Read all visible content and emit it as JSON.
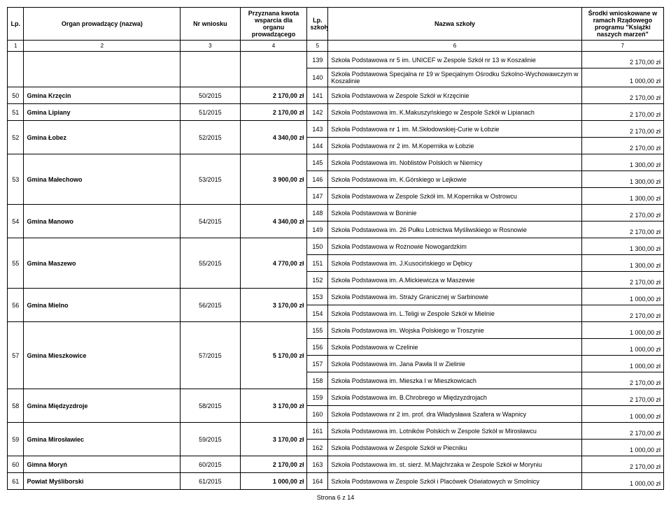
{
  "headers": {
    "lp": "Lp.",
    "organ": "Organ prowadzący (nazwa)",
    "nr": "Nr wniosku",
    "kwota": "Przyznana kwota wsparcia dla organu prowadzącego",
    "lps": "Lp. szkoły",
    "szkola": "Nazwa szkoły",
    "srodki": "Środki wnioskowane w ramach Rządowego programu \"Książki naszych marzeń\""
  },
  "numrow": [
    "1",
    "2",
    "3",
    "4",
    "5",
    "6",
    "7"
  ],
  "groups": [
    {
      "lp": "",
      "organ": "",
      "nr": "",
      "kwota": "",
      "rows": [
        {
          "lps": "139",
          "szkola": "Szkoła Podstawowa nr 5 im. UNICEF w Zespole Szkół nr 13 w Koszalinie",
          "srodki": "2 170,00 zł"
        },
        {
          "lps": "140",
          "szkola": "Szkoła Podstawowa Specjalna nr 19 w Specjalnym Ośrodku Szkolno-Wychowawczym w Koszalinie",
          "srodki": "1 000,00 zł"
        }
      ]
    },
    {
      "lp": "50",
      "organ": "Gmina Krzęcin",
      "nr": "50/2015",
      "kwota": "2 170,00 zł",
      "rows": [
        {
          "lps": "141",
          "szkola": "Szkoła Podstawowa w Zespole Szkół w Krzęcinie",
          "srodki": "2 170,00 zł"
        }
      ]
    },
    {
      "lp": "51",
      "organ": "Gmina Lipiany",
      "nr": "51/2015",
      "kwota": "2 170,00 zł",
      "rows": [
        {
          "lps": "142",
          "szkola": "Szkoła Podstawowa im. K.Makuszyńskiego w Zespole Szkół w Lipianach",
          "srodki": "2 170,00 zł"
        }
      ]
    },
    {
      "lp": "52",
      "organ": "Gmina Łobez",
      "nr": "52/2015",
      "kwota": "4 340,00 zł",
      "rows": [
        {
          "lps": "143",
          "szkola": "Szkoła Podstawowa nr 1 im. M.Skłodowskiej-Curie w Łobzie",
          "srodki": "2 170,00 zł"
        },
        {
          "lps": "144",
          "szkola": "Szkoła Podstawowa nr 2 im. M.Kopernika w Łobzie",
          "srodki": "2 170,00 zł"
        }
      ]
    },
    {
      "lp": "53",
      "organ": "Gmina Małechowo",
      "nr": "53/2015",
      "kwota": "3 900,00 zł",
      "rows": [
        {
          "lps": "145",
          "szkola": "Szkoła Podstawowa  im. Noblistów Polskich w Niemicy",
          "srodki": "1 300,00 zł"
        },
        {
          "lps": "146",
          "szkola": "Szkoła Podstawowa  im. K.Górskiego w Lejkowie",
          "srodki": "1 300,00 zł"
        },
        {
          "lps": "147",
          "szkola": "Szkoła Podstawowa w Zespole Szkół im. M.Kopernika w Ostrowcu",
          "srodki": "1 300,00 zł"
        }
      ]
    },
    {
      "lp": "54",
      "organ": "Gmina Manowo",
      "nr": "54/2015",
      "kwota": "4 340,00 zł",
      "rows": [
        {
          "lps": "148",
          "szkola": "Szkoła Podstawowa w Boninie",
          "srodki": "2 170,00 zł"
        },
        {
          "lps": "149",
          "szkola": "Szkoła Podstawowa im. 26 Pułku Lotnictwa Myśliwskiego w Rosnowie",
          "srodki": "2 170,00 zł"
        }
      ]
    },
    {
      "lp": "55",
      "organ": "Gmina Maszewo",
      "nr": "55/2015",
      "kwota": "4 770,00 zł",
      "rows": [
        {
          "lps": "150",
          "szkola": "Szkoła Podstawowa w Rożnowie Nowogardzkim",
          "srodki": "1 300,00 zł"
        },
        {
          "lps": "151",
          "szkola": "Szkoła Podstawowa im. J.Kusocińskiego w Dębicy",
          "srodki": "1 300,00 zł"
        },
        {
          "lps": "152",
          "szkola": "Szkoła Podstawowa im. A.Mickiewicza w Maszewie",
          "srodki": "2 170,00 zł"
        }
      ]
    },
    {
      "lp": "56",
      "organ": "Gmina Mielno",
      "nr": "56/2015",
      "kwota": "3 170,00 zł",
      "rows": [
        {
          "lps": "153",
          "szkola": "Szkoła Podstawowa im. Straży Granicznej w Sarbinowie",
          "srodki": "1 000,00 zł"
        },
        {
          "lps": "154",
          "szkola": "Szkoła Podstawowa im. L.Teligi w Zespole Szkół w Mielnie",
          "srodki": "2 170,00 zł"
        }
      ]
    },
    {
      "lp": "57",
      "organ": "Gmina Mieszkowice",
      "nr": "57/2015",
      "kwota": "5 170,00 zł",
      "rows": [
        {
          "lps": "155",
          "szkola": "Szkoła Podstawowa im. Wojska Polskiego w Troszynie",
          "srodki": "1 000,00 zł"
        },
        {
          "lps": "156",
          "szkola": "Szkoła Podstawowa w Czelinie",
          "srodki": "1 000,00 zł"
        },
        {
          "lps": "157",
          "szkola": "Szkoła Podstawowa im. Jana Pawła II w Zielinie",
          "srodki": "1 000,00 zł"
        },
        {
          "lps": "158",
          "szkola": "Szkoła Podstawowa im. Mieszka I w Mieszkowicach",
          "srodki": "2 170,00 zł"
        }
      ]
    },
    {
      "lp": "58",
      "organ": "Gmina Międzyzdroje",
      "nr": "58/2015",
      "kwota": "3 170,00 zł",
      "rows": [
        {
          "lps": "159",
          "szkola": "Szkoła Podstawowa im. B.Chrobrego w Międzyzdrojach",
          "srodki": "2 170,00 zł"
        },
        {
          "lps": "160",
          "szkola": "Szkoła Podstawowa nr 2 im. prof. dra Władysława Szafera w Wapnicy",
          "srodki": "1 000,00 zł"
        }
      ]
    },
    {
      "lp": "59",
      "organ": "Gmina Mirosławiec",
      "nr": "59/2015",
      "kwota": "3 170,00 zł",
      "rows": [
        {
          "lps": "161",
          "szkola": "Szkoła Podstawowa im. Lotników Polskich w Zespole Szkół w Mirosławcu",
          "srodki": "2 170,00 zł"
        },
        {
          "lps": "162",
          "szkola": "Szkoła Podstawowa w Zespole Szkół  w Piecniku",
          "srodki": "1 000,00 zł"
        }
      ]
    },
    {
      "lp": "60",
      "organ": "Gimna Moryń",
      "nr": "60/2015",
      "kwota": "2 170,00 zł",
      "rows": [
        {
          "lps": "163",
          "szkola": "Szkoła Podstawowa im. st. sierż. M.Majchrzaka w Zespole Szkół w Moryniu",
          "srodki": "2 170,00 zł"
        }
      ]
    },
    {
      "lp": "61",
      "organ": "Powiat Myśliborski",
      "nr": "61/2015",
      "kwota": "1 000,00 zł",
      "rows": [
        {
          "lps": "164",
          "szkola": "Szkoła Podstawowa w Zespole Szkół i Placówek Oświatowych w Smolnicy",
          "srodki": "1 000,00 zł"
        }
      ]
    }
  ],
  "footer": "Strona 6 z 14"
}
